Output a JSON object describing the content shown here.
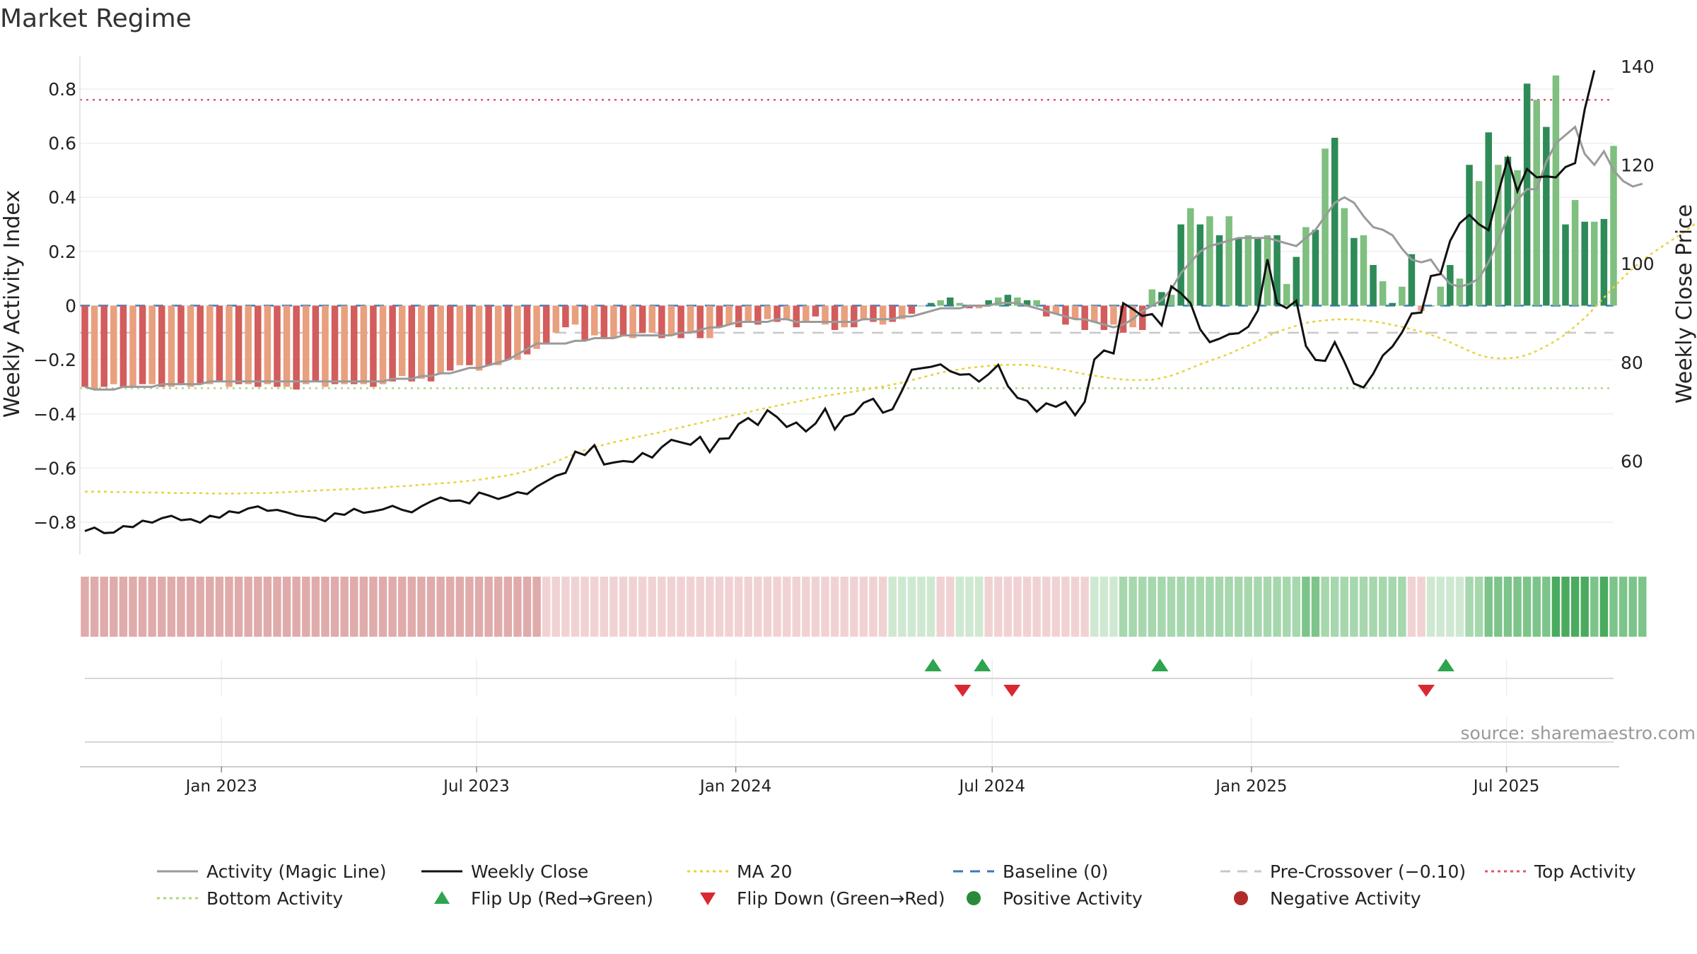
{
  "chart_data": {
    "type": "bar",
    "title": "Market Regime",
    "source": "source: sharemaestro.com",
    "left_axis": {
      "label": "Weekly Activity Index",
      "ylim": [
        -0.92,
        0.92
      ],
      "ticks": [
        0.8,
        0.6,
        0.4,
        0.2,
        0,
        -0.2,
        -0.4,
        -0.6,
        -0.8
      ],
      "tick_labels": [
        "0.8",
        "0.6",
        "0.4",
        "0.2",
        "0",
        "−0.2",
        "−0.4",
        "−0.6",
        "−0.8"
      ]
    },
    "right_axis": {
      "label": "Weekly Close Price",
      "ylim": [
        41,
        142
      ],
      "ticks": [
        140,
        120,
        100,
        80,
        60
      ],
      "tick_labels": [
        "140",
        "120",
        "100",
        "80",
        "60"
      ]
    },
    "x_axis": {
      "start": "2022-09-26",
      "end": "2025-09-15",
      "ticks": [
        "2023-01-01",
        "2023-07-01",
        "2024-01-01",
        "2024-07-01",
        "2025-01-01",
        "2025-07-01"
      ],
      "tick_labels": [
        "Jan 2023",
        "Jul 2023",
        "Jan 2024",
        "Jul 2024",
        "Jan 2025",
        "Jul 2025"
      ]
    },
    "reference_lines": {
      "top_activity": 0.76,
      "pre_crossover": -0.1,
      "bottom_activity": -0.305,
      "baseline": 0
    },
    "activity": [
      -0.3,
      -0.31,
      -0.3,
      -0.29,
      -0.3,
      -0.3,
      -0.29,
      -0.29,
      -0.3,
      -0.3,
      -0.29,
      -0.3,
      -0.29,
      -0.29,
      -0.28,
      -0.3,
      -0.29,
      -0.29,
      -0.3,
      -0.29,
      -0.3,
      -0.3,
      -0.31,
      -0.29,
      -0.28,
      -0.3,
      -0.29,
      -0.29,
      -0.29,
      -0.29,
      -0.3,
      -0.29,
      -0.28,
      -0.26,
      -0.28,
      -0.27,
      -0.28,
      -0.25,
      -0.24,
      -0.22,
      -0.22,
      -0.24,
      -0.22,
      -0.22,
      -0.2,
      -0.2,
      -0.18,
      -0.16,
      -0.14,
      -0.1,
      -0.08,
      -0.07,
      -0.13,
      -0.11,
      -0.12,
      -0.12,
      -0.11,
      -0.12,
      -0.1,
      -0.1,
      -0.12,
      -0.11,
      -0.12,
      -0.1,
      -0.12,
      -0.12,
      -0.08,
      -0.07,
      -0.08,
      -0.06,
      -0.07,
      -0.05,
      -0.06,
      -0.05,
      -0.08,
      -0.06,
      -0.04,
      -0.07,
      -0.09,
      -0.08,
      -0.08,
      -0.05,
      -0.06,
      -0.07,
      -0.06,
      -0.05,
      -0.03,
      0.0,
      0.01,
      0.02,
      0.03,
      0.01,
      -0.01,
      -0.01,
      0.02,
      0.03,
      0.04,
      0.03,
      0.02,
      0.02,
      -0.04,
      -0.03,
      -0.07,
      -0.05,
      -0.09,
      -0.06,
      -0.09,
      -0.07,
      -0.1,
      -0.08,
      -0.09,
      0.06,
      0.05,
      0.04,
      0.3,
      0.36,
      0.3,
      0.33,
      0.26,
      0.33,
      0.25,
      0.26,
      0.25,
      0.26,
      0.26,
      0.08,
      0.18,
      0.29,
      0.28,
      0.58,
      0.62,
      0.36,
      0.25,
      0.26,
      0.15,
      0.09,
      0.01,
      0.07,
      0.19,
      -0.02,
      0.0,
      0.07,
      0.15,
      0.1,
      0.52,
      0.46,
      0.64,
      0.52,
      0.55,
      0.5,
      0.82,
      0.76,
      0.66,
      0.85,
      0.3,
      0.39,
      0.31,
      0.31,
      0.32,
      0.59
    ],
    "magic_line": [
      -0.3,
      -0.31,
      -0.31,
      -0.31,
      -0.3,
      -0.3,
      -0.3,
      -0.3,
      -0.29,
      -0.29,
      -0.29,
      -0.29,
      -0.29,
      -0.28,
      -0.28,
      -0.28,
      -0.28,
      -0.28,
      -0.28,
      -0.28,
      -0.28,
      -0.28,
      -0.28,
      -0.28,
      -0.28,
      -0.28,
      -0.28,
      -0.28,
      -0.28,
      -0.28,
      -0.28,
      -0.28,
      -0.27,
      -0.27,
      -0.27,
      -0.26,
      -0.26,
      -0.25,
      -0.25,
      -0.24,
      -0.23,
      -0.23,
      -0.22,
      -0.21,
      -0.2,
      -0.18,
      -0.16,
      -0.14,
      -0.14,
      -0.14,
      -0.14,
      -0.13,
      -0.13,
      -0.12,
      -0.12,
      -0.12,
      -0.11,
      -0.11,
      -0.11,
      -0.11,
      -0.11,
      -0.11,
      -0.1,
      -0.1,
      -0.09,
      -0.08,
      -0.08,
      -0.07,
      -0.06,
      -0.06,
      -0.06,
      -0.06,
      -0.05,
      -0.05,
      -0.06,
      -0.06,
      -0.06,
      -0.06,
      -0.06,
      -0.06,
      -0.06,
      -0.05,
      -0.05,
      -0.05,
      -0.05,
      -0.04,
      -0.04,
      -0.03,
      -0.02,
      -0.01,
      -0.01,
      -0.01,
      0.0,
      0.0,
      0.0,
      0.01,
      0.01,
      0.01,
      0.0,
      -0.01,
      -0.02,
      -0.03,
      -0.04,
      -0.05,
      -0.05,
      -0.06,
      -0.07,
      -0.08,
      -0.07,
      -0.05,
      -0.02,
      0.0,
      0.02,
      0.06,
      0.12,
      0.16,
      0.2,
      0.22,
      0.23,
      0.24,
      0.25,
      0.25,
      0.25,
      0.25,
      0.24,
      0.23,
      0.22,
      0.25,
      0.28,
      0.33,
      0.38,
      0.4,
      0.38,
      0.33,
      0.29,
      0.28,
      0.26,
      0.21,
      0.17,
      0.16,
      0.17,
      0.12,
      0.08,
      0.07,
      0.08,
      0.1,
      0.16,
      0.24,
      0.33,
      0.39,
      0.43,
      0.43,
      0.53,
      0.6,
      0.63,
      0.66,
      0.56,
      0.52,
      0.57,
      0.5,
      0.46,
      0.44,
      0.45
    ],
    "weekly_close": [
      45.8,
      46.5,
      45.4,
      45.5,
      46.8,
      46.6,
      47.9,
      47.5,
      48.4,
      48.9,
      48.0,
      48.2,
      47.5,
      48.9,
      48.5,
      49.8,
      49.5,
      50.4,
      50.8,
      49.9,
      50.1,
      49.6,
      49.0,
      48.7,
      48.5,
      47.8,
      49.4,
      49.1,
      50.3,
      49.5,
      49.8,
      50.2,
      50.9,
      50.1,
      49.6,
      50.8,
      51.8,
      52.6,
      51.9,
      52.0,
      51.4,
      53.6,
      53.0,
      52.3,
      52.9,
      53.7,
      53.3,
      54.8,
      55.9,
      57.0,
      57.6,
      61.9,
      61.2,
      63.2,
      59.3,
      59.7,
      60.0,
      59.8,
      61.6,
      60.7,
      62.8,
      64.3,
      63.8,
      63.3,
      64.9,
      61.8,
      64.5,
      64.6,
      67.5,
      68.7,
      67.3,
      70.3,
      68.9,
      66.9,
      67.8,
      66.0,
      67.6,
      70.6,
      66.4,
      69.0,
      69.6,
      71.8,
      72.6,
      69.8,
      70.5,
      74.3,
      78.5,
      78.8,
      79.1,
      79.6,
      78.2,
      77.5,
      77.6,
      76.1,
      77.6,
      79.5,
      75.2,
      72.8,
      72.2,
      70.0,
      71.7,
      71.0,
      72.0,
      69.3,
      72.0,
      80.6,
      82.4,
      81.8,
      92.0,
      90.8,
      89.4,
      89.8,
      87.5,
      95.4,
      94.0,
      92.0,
      86.7,
      84.1,
      84.8,
      85.7,
      85.9,
      87.2,
      90.5,
      100.9,
      92.0,
      91.0,
      92.5,
      83.3,
      80.5,
      80.3,
      84.1,
      80.1,
      75.7,
      74.9,
      77.7,
      81.4,
      83.2,
      86.1,
      89.9,
      90.1,
      97.5,
      97.9,
      104.6,
      108.2,
      109.9,
      108.0,
      106.8,
      114.3,
      121.3,
      114.7,
      119.2,
      117.5,
      117.7,
      117.5,
      119.6,
      120.4,
      131.3,
      139.2
    ],
    "ma20": [
      53.8,
      53.8,
      53.8,
      53.7,
      53.7,
      53.7,
      53.6,
      53.6,
      53.6,
      53.5,
      53.5,
      53.5,
      53.5,
      53.4,
      53.4,
      53.4,
      53.4,
      53.5,
      53.5,
      53.5,
      53.6,
      53.7,
      53.8,
      53.9,
      54.0,
      54.1,
      54.2,
      54.3,
      54.3,
      54.4,
      54.5,
      54.6,
      54.8,
      54.9,
      55.0,
      55.2,
      55.3,
      55.5,
      55.6,
      55.8,
      56.0,
      56.2,
      56.5,
      56.8,
      57.1,
      57.5,
      58.0,
      58.6,
      59.2,
      59.9,
      60.7,
      61.5,
      62.2,
      62.8,
      63.3,
      63.8,
      64.2,
      64.7,
      65.1,
      65.5,
      65.9,
      66.4,
      66.8,
      67.3,
      67.7,
      68.2,
      68.6,
      69.1,
      69.5,
      69.9,
      70.4,
      70.8,
      71.2,
      71.6,
      72.0,
      72.4,
      72.8,
      73.2,
      73.5,
      73.8,
      74.1,
      74.4,
      74.8,
      75.1,
      75.5,
      75.9,
      76.4,
      76.9,
      77.4,
      77.9,
      78.3,
      78.6,
      78.9,
      79.1,
      79.3,
      79.4,
      79.5,
      79.5,
      79.5,
      79.3,
      79.0,
      78.7,
      78.4,
      78.0,
      77.6,
      77.3,
      77.0,
      76.7,
      76.5,
      76.4,
      76.4,
      76.5,
      76.8,
      77.3,
      78.0,
      78.8,
      79.6,
      80.3,
      81.0,
      81.7,
      82.6,
      83.4,
      84.3,
      85.3,
      86.2,
      86.8,
      87.4,
      88.0,
      88.3,
      88.5,
      88.7,
      88.7,
      88.7,
      88.5,
      88.3,
      88.0,
      87.6,
      87.2,
      86.7,
      86.2,
      85.6,
      84.9,
      84.1,
      83.2,
      82.3,
      81.5,
      81.0,
      80.8,
      80.8,
      81.0,
      81.5,
      82.3,
      83.3,
      84.4,
      85.7,
      87.3,
      89.0,
      91.0,
      93.1,
      95.2,
      97.2,
      99.0,
      100.7,
      102.1,
      103.4,
      104.7,
      106.0,
      107.4,
      108.8,
      110.3,
      111.8,
      113.1,
      114.5,
      116.2
    ],
    "regime_level": [
      -2,
      -2,
      -2,
      -2,
      -2,
      -2,
      -2,
      -2,
      -2,
      -2,
      -2,
      -2,
      -2,
      -2,
      -2,
      -2,
      -2,
      -2,
      -2,
      -2,
      -2,
      -2,
      -2,
      -2,
      -2,
      -2,
      -2,
      -2,
      -2,
      -2,
      -2,
      -2,
      -2,
      -2,
      -2,
      -2,
      -2,
      -2,
      -2,
      -2,
      -2,
      -2,
      -2,
      -2,
      -2,
      -2,
      -2,
      -2,
      -1,
      -1,
      -1,
      -1,
      -1,
      -1,
      -1,
      -1,
      -1,
      -1,
      -1,
      -1,
      -1,
      -1,
      -1,
      -1,
      -1,
      -1,
      -1,
      -1,
      -1,
      -1,
      -1,
      -1,
      -1,
      -1,
      -1,
      -1,
      -1,
      -1,
      -1,
      -1,
      -1,
      -1,
      -1,
      -1,
      1,
      1,
      1,
      1,
      1,
      -1,
      -1,
      1,
      1,
      1,
      -1,
      -1,
      -1,
      -1,
      -1,
      -1,
      -1,
      -1,
      -1,
      -1,
      -1,
      1,
      1,
      1,
      2,
      2,
      2,
      2,
      2,
      2,
      2,
      2,
      2,
      2,
      2,
      2,
      2,
      2,
      2,
      2,
      2,
      2,
      2,
      3,
      3,
      2,
      2,
      2,
      2,
      2,
      2,
      2,
      2,
      2,
      -1,
      -1,
      1,
      1,
      1,
      1,
      2,
      2,
      3,
      3,
      3,
      3,
      3,
      3,
      3,
      4,
      4,
      4,
      4,
      3,
      4,
      3,
      3,
      3,
      3
    ],
    "flip_up": [
      "2024-05-20",
      "2024-06-24",
      "2024-10-28",
      "2025-05-19"
    ],
    "flip_down": [
      "2024-06-10",
      "2024-07-15",
      "2025-05-05"
    ],
    "legend": {
      "location": "bottom",
      "entries": [
        {
          "label": "Activity (Magic Line)",
          "marker": "line",
          "color": "#9a9a9a",
          "dash": "solid"
        },
        {
          "label": "Weekly Close",
          "marker": "line",
          "color": "#111111",
          "dash": "solid"
        },
        {
          "label": "MA 20",
          "marker": "line",
          "color": "#e8d23a",
          "dash": "dot"
        },
        {
          "label": "Baseline (0)",
          "marker": "line",
          "color": "#3a7ab8",
          "dash": "dash"
        },
        {
          "label": "Pre-Crossover (−0.10)",
          "marker": "line",
          "color": "#c8c8c8",
          "dash": "dash"
        },
        {
          "label": "Top Activity",
          "marker": "line",
          "color": "#d9596e",
          "dash": "dot"
        },
        {
          "label": "Bottom Activity",
          "marker": "line",
          "color": "#a9d97e",
          "dash": "dot"
        },
        {
          "label": "Flip Up (Red→Green)",
          "marker": "triangle-up",
          "color": "#2ea44f"
        },
        {
          "label": "Flip Down (Green→Red)",
          "marker": "triangle-down",
          "color": "#d9282f"
        },
        {
          "label": "Positive Activity",
          "marker": "circle",
          "color": "#2a8a3a"
        },
        {
          "label": "Negative Activity",
          "marker": "circle",
          "color": "#b22a2a"
        }
      ]
    }
  },
  "colors": {
    "bar_positive_dark": "#2e8b57",
    "bar_positive_light": "#7fbf7f",
    "bar_negative_dark": "#d35c5c",
    "bar_negative_light": "#e8a07e",
    "strip_neg_strong": "#e0abab",
    "strip_neg_weak": "#f1d2d2",
    "strip_pos_1": "#cfe8d2",
    "strip_pos_2": "#a6d7ad",
    "strip_pos_3": "#7cc48a",
    "strip_pos_4": "#4aab5e",
    "grid": "#ececec",
    "text": "#222222",
    "muted_text": "#999999"
  }
}
